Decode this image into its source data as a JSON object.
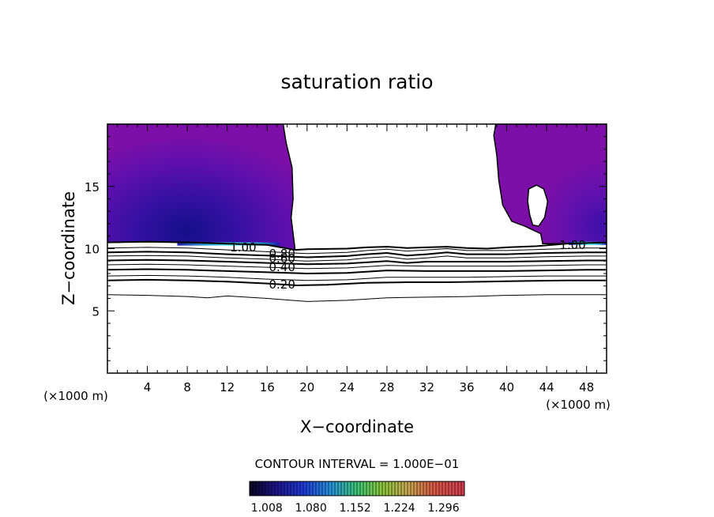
{
  "chart_data": {
    "type": "contour",
    "title": "saturation ratio",
    "xlabel": "X−coordinate",
    "ylabel": "Z−coordinate",
    "x_unit": "(×1000 m)",
    "z_unit": "(×1000 m)",
    "xlim": [
      0,
      50
    ],
    "ylim": [
      0,
      20
    ],
    "x_ticks": [
      4,
      8,
      12,
      16,
      20,
      24,
      28,
      32,
      36,
      40,
      44,
      48
    ],
    "x_tick_labels": [
      "4",
      "8",
      "12",
      "16",
      "20",
      "24",
      "28",
      "32",
      "36",
      "40",
      "44",
      "48"
    ],
    "y_ticks": [
      5,
      10,
      15
    ],
    "y_tick_labels": [
      "5",
      "10",
      "15"
    ],
    "contour_interval_text": "CONTOUR INTERVAL = 1.000E−01",
    "contour_labels": [
      {
        "text": "1.00",
        "x": 13.6,
        "y": 10.1
      },
      {
        "text": "0.80",
        "x": 17.5,
        "y": 9.6
      },
      {
        "text": "0.60",
        "x": 17.5,
        "y": 9.2
      },
      {
        "text": "0.40",
        "x": 17.5,
        "y": 8.5
      },
      {
        "text": "0.20",
        "x": 17.5,
        "y": 7.1
      },
      {
        "text": "1.00",
        "x": 46.6,
        "y": 10.3
      }
    ],
    "contour_lines": [
      {
        "level": 1.0,
        "points": [
          [
            0,
            10.5
          ],
          [
            4,
            10.55
          ],
          [
            8,
            10.5
          ],
          [
            12,
            10.4
          ],
          [
            16,
            10.3
          ],
          [
            18.8,
            9.9
          ],
          [
            20,
            9.95
          ],
          [
            24,
            10.0
          ],
          [
            26,
            10.1
          ],
          [
            28,
            10.15
          ],
          [
            30,
            10.05
          ],
          [
            32,
            10.1
          ],
          [
            34,
            10.15
          ],
          [
            36,
            10.05
          ],
          [
            38,
            10.0
          ],
          [
            40,
            10.1
          ],
          [
            43,
            10.2
          ],
          [
            46,
            10.4
          ],
          [
            50,
            10.5
          ]
        ]
      },
      {
        "level": 0.9,
        "points": [
          [
            0,
            10.05
          ],
          [
            4,
            10.1
          ],
          [
            8,
            10.05
          ],
          [
            12,
            9.9
          ],
          [
            16,
            9.75
          ],
          [
            20,
            9.6
          ],
          [
            24,
            9.7
          ],
          [
            26,
            9.85
          ],
          [
            28,
            9.95
          ],
          [
            30,
            9.8
          ],
          [
            32,
            9.9
          ],
          [
            34,
            10.0
          ],
          [
            36,
            9.85
          ],
          [
            40,
            9.85
          ],
          [
            44,
            9.95
          ],
          [
            48,
            10.05
          ],
          [
            50,
            10.05
          ]
        ]
      },
      {
        "level": 0.8,
        "points": [
          [
            0,
            9.7
          ],
          [
            4,
            9.75
          ],
          [
            8,
            9.7
          ],
          [
            12,
            9.55
          ],
          [
            16,
            9.45
          ],
          [
            20,
            9.3
          ],
          [
            24,
            9.4
          ],
          [
            26,
            9.55
          ],
          [
            28,
            9.65
          ],
          [
            30,
            9.45
          ],
          [
            32,
            9.55
          ],
          [
            34,
            9.7
          ],
          [
            36,
            9.55
          ],
          [
            40,
            9.55
          ],
          [
            44,
            9.65
          ],
          [
            48,
            9.7
          ],
          [
            50,
            9.7
          ]
        ]
      },
      {
        "level": 0.7,
        "points": [
          [
            0,
            9.4
          ],
          [
            4,
            9.45
          ],
          [
            8,
            9.4
          ],
          [
            12,
            9.25
          ],
          [
            16,
            9.15
          ],
          [
            20,
            9.0
          ],
          [
            24,
            9.1
          ],
          [
            26,
            9.25
          ],
          [
            28,
            9.35
          ],
          [
            30,
            9.15
          ],
          [
            32,
            9.25
          ],
          [
            34,
            9.4
          ],
          [
            36,
            9.25
          ],
          [
            40,
            9.25
          ],
          [
            44,
            9.35
          ],
          [
            48,
            9.4
          ],
          [
            50,
            9.4
          ]
        ]
      },
      {
        "level": 0.6,
        "points": [
          [
            0,
            9.05
          ],
          [
            4,
            9.1
          ],
          [
            8,
            9.05
          ],
          [
            12,
            8.95
          ],
          [
            16,
            8.85
          ],
          [
            20,
            8.75
          ],
          [
            24,
            8.8
          ],
          [
            28,
            9.0
          ],
          [
            30,
            8.85
          ],
          [
            32,
            8.95
          ],
          [
            36,
            8.95
          ],
          [
            40,
            8.95
          ],
          [
            44,
            9.0
          ],
          [
            48,
            9.05
          ],
          [
            50,
            9.05
          ]
        ]
      },
      {
        "level": 0.5,
        "points": [
          [
            0,
            8.7
          ],
          [
            4,
            8.75
          ],
          [
            8,
            8.7
          ],
          [
            12,
            8.6
          ],
          [
            16,
            8.5
          ],
          [
            20,
            8.4
          ],
          [
            24,
            8.45
          ],
          [
            28,
            8.65
          ],
          [
            32,
            8.6
          ],
          [
            36,
            8.6
          ],
          [
            40,
            8.6
          ],
          [
            44,
            8.65
          ],
          [
            48,
            8.7
          ],
          [
            50,
            8.7
          ]
        ]
      },
      {
        "level": 0.4,
        "points": [
          [
            0,
            8.3
          ],
          [
            4,
            8.35
          ],
          [
            8,
            8.3
          ],
          [
            12,
            8.2
          ],
          [
            16,
            8.1
          ],
          [
            20,
            8.0
          ],
          [
            24,
            8.05
          ],
          [
            28,
            8.25
          ],
          [
            32,
            8.2
          ],
          [
            36,
            8.2
          ],
          [
            40,
            8.2
          ],
          [
            44,
            8.25
          ],
          [
            48,
            8.3
          ],
          [
            50,
            8.3
          ]
        ]
      },
      {
        "level": 0.3,
        "points": [
          [
            0,
            7.8
          ],
          [
            4,
            7.85
          ],
          [
            8,
            7.8
          ],
          [
            12,
            7.7
          ],
          [
            16,
            7.55
          ],
          [
            20,
            7.45
          ],
          [
            24,
            7.5
          ],
          [
            28,
            7.7
          ],
          [
            32,
            7.7
          ],
          [
            36,
            7.7
          ],
          [
            40,
            7.75
          ],
          [
            44,
            7.8
          ],
          [
            48,
            7.8
          ],
          [
            50,
            7.8
          ]
        ]
      },
      {
        "level": 0.2,
        "points": [
          [
            0,
            7.45
          ],
          [
            4,
            7.5
          ],
          [
            8,
            7.45
          ],
          [
            12,
            7.35
          ],
          [
            16,
            7.2
          ],
          [
            19,
            7.05
          ],
          [
            22,
            7.1
          ],
          [
            26,
            7.25
          ],
          [
            30,
            7.3
          ],
          [
            34,
            7.3
          ],
          [
            38,
            7.35
          ],
          [
            42,
            7.4
          ],
          [
            46,
            7.45
          ],
          [
            50,
            7.45
          ]
        ]
      },
      {
        "level": 0.1,
        "points": [
          [
            0,
            6.3
          ],
          [
            4,
            6.25
          ],
          [
            8,
            6.15
          ],
          [
            10,
            6.05
          ],
          [
            12,
            6.2
          ],
          [
            16,
            6.0
          ],
          [
            20,
            5.75
          ],
          [
            24,
            5.85
          ],
          [
            28,
            6.05
          ],
          [
            32,
            6.1
          ],
          [
            36,
            6.15
          ],
          [
            40,
            6.25
          ],
          [
            44,
            6.3
          ],
          [
            48,
            6.3
          ],
          [
            50,
            6.3
          ]
        ]
      }
    ],
    "shaded_regions": [
      {
        "name": "left",
        "points": [
          [
            0,
            20
          ],
          [
            17.6,
            20
          ],
          [
            17.9,
            18.5
          ],
          [
            18.5,
            16.5
          ],
          [
            18.6,
            14
          ],
          [
            18.4,
            12.5
          ],
          [
            18.6,
            11.2
          ],
          [
            18.8,
            9.9
          ],
          [
            16,
            10.3
          ],
          [
            12,
            10.4
          ],
          [
            8,
            10.5
          ],
          [
            4,
            10.55
          ],
          [
            0,
            10.5
          ]
        ]
      },
      {
        "name": "right",
        "points": [
          [
            38.9,
            20
          ],
          [
            38.7,
            19.1
          ],
          [
            39.0,
            17.5
          ],
          [
            39.2,
            15.5
          ],
          [
            39.6,
            13.5
          ],
          [
            40.5,
            12.2
          ],
          [
            41.8,
            11.8
          ],
          [
            43.4,
            11.2
          ],
          [
            43.6,
            10.4
          ],
          [
            46,
            10.4
          ],
          [
            50,
            10.5
          ],
          [
            50,
            20
          ]
        ]
      }
    ],
    "shaded_hole": [
      [
        42.2,
        14.8
      ],
      [
        43.0,
        15.1
      ],
      [
        43.7,
        14.8
      ],
      [
        44.1,
        13.8
      ],
      [
        43.8,
        12.5
      ],
      [
        43.2,
        11.8
      ],
      [
        42.6,
        11.9
      ],
      [
        42.3,
        12.7
      ],
      [
        42.1,
        13.8
      ]
    ],
    "colorbar": {
      "min": 0.98,
      "max": 1.33,
      "labels": [
        "1.008",
        "1.080",
        "1.152",
        "1.224",
        "1.296"
      ],
      "label_values": [
        1.008,
        1.08,
        1.152,
        1.224,
        1.296
      ]
    },
    "colors": {
      "fill_base": "#7b0fa8",
      "fill_mid": "#4a0fb0",
      "fill_dark": "#1a0f8f",
      "fill_band": "#35e0e0"
    }
  }
}
